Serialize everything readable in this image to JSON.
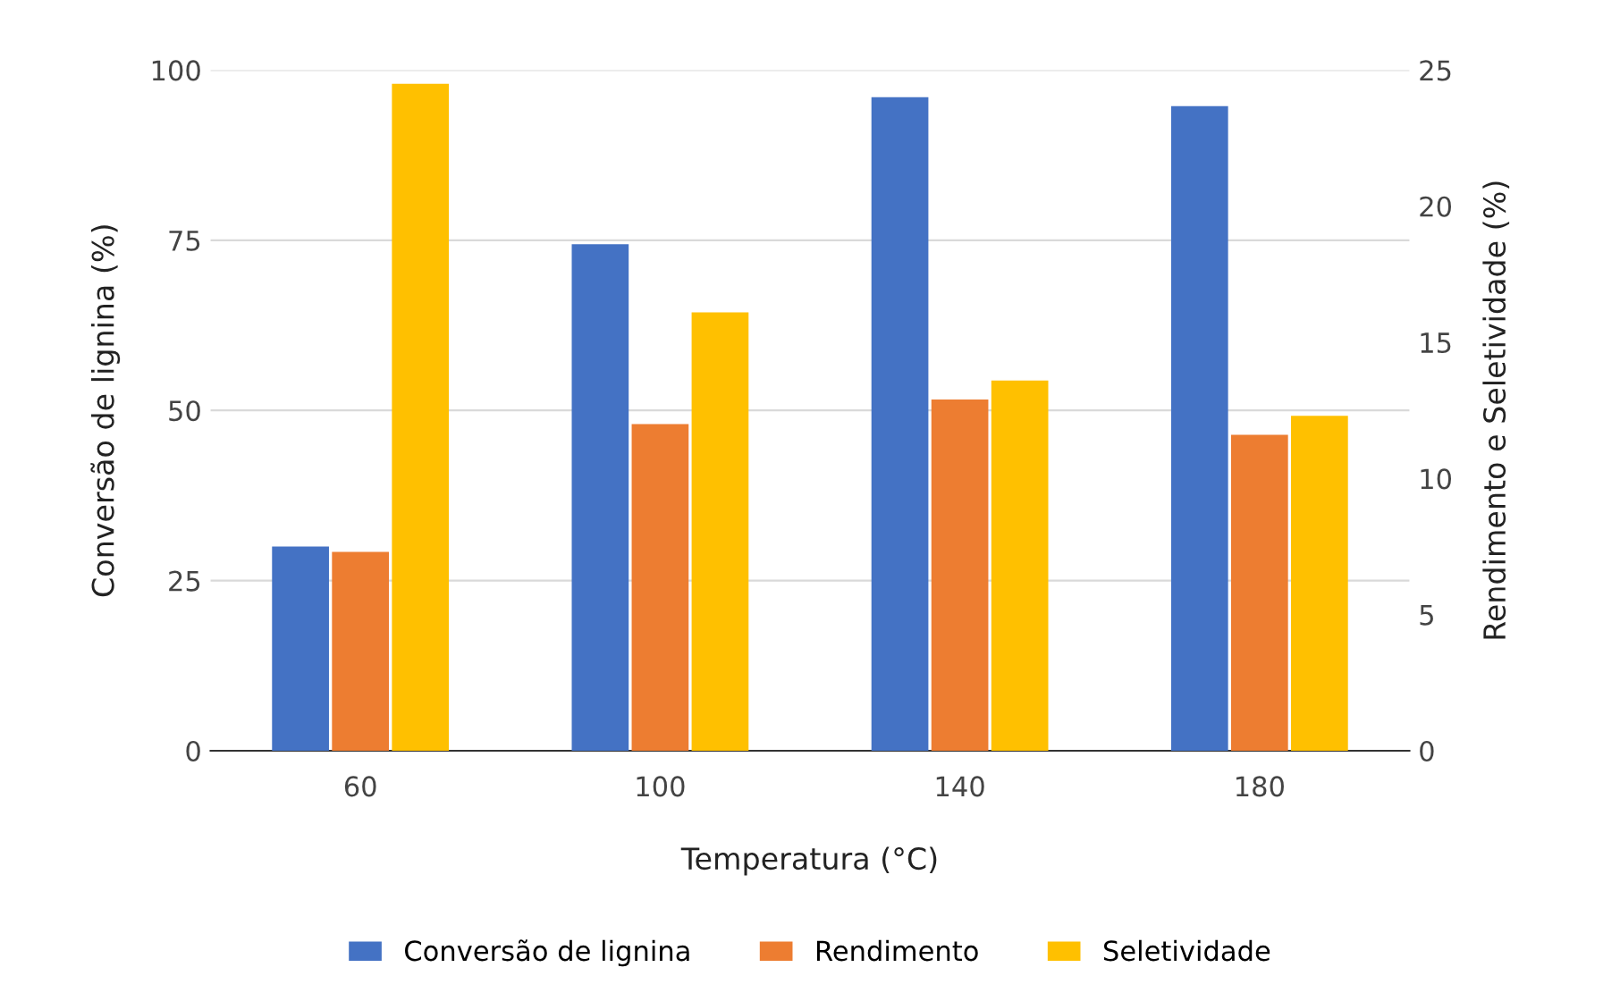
{
  "chart_data": {
    "type": "bar",
    "xlabel": "Temperatura (°C)",
    "ylabel": "Conversão de lignina (%)",
    "y2label": "Rendimento e Seletividade (%)",
    "categories": [
      "60",
      "100",
      "140",
      "180"
    ],
    "series": [
      {
        "name": "Conversão de lignina",
        "color": "#4472c4",
        "values": [
          30,
          74.4,
          96,
          94.7
        ]
      },
      {
        "name": "Rendimento",
        "color": "#ed7d31",
        "values": [
          7.3,
          12,
          12.9,
          11.6
        ],
        "axis": "y2"
      },
      {
        "name": "Seletividade",
        "color": "#ffc000",
        "values": [
          24.5,
          16.1,
          13.6,
          12.3
        ],
        "axis": "y2"
      }
    ],
    "ylim": [
      0,
      100
    ],
    "yticks": [
      0,
      25,
      50,
      75,
      100
    ],
    "y2lim": [
      0,
      25
    ],
    "y2ticks": [
      0,
      5,
      10,
      15,
      20,
      25
    ],
    "grid": "y",
    "legend": "bottom"
  }
}
